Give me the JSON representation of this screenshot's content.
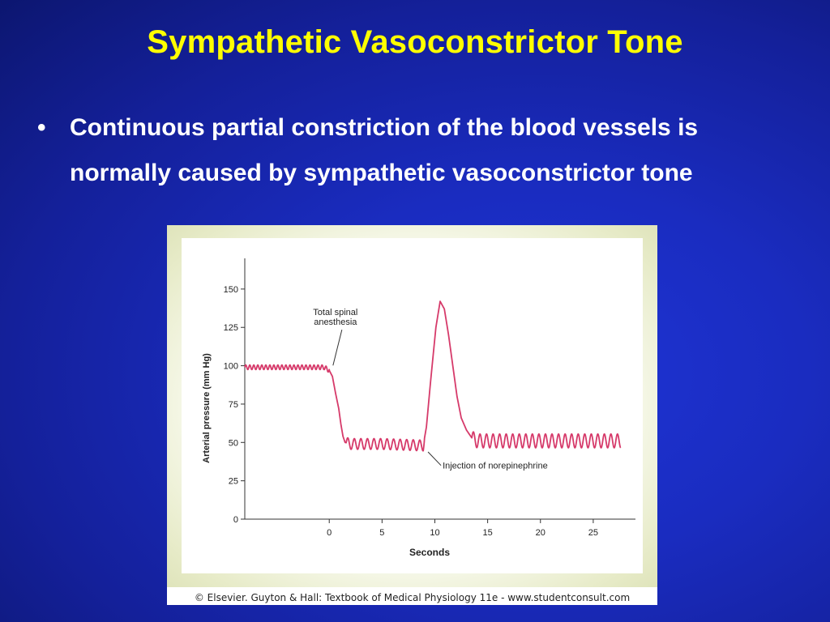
{
  "slide": {
    "title": "Sympathetic Vasoconstrictor Tone",
    "bullet_symbol": "•",
    "bullet_text": "Continuous partial constriction of the blood vessels is normally caused by sympathetic vasoconstrictor tone"
  },
  "figure": {
    "credit": "© Elsevier. Guyton & Hall: Textbook of Medical Physiology 11e - www.studentconsult.com"
  },
  "colors": {
    "title": "#ffff00",
    "bullet": "#ffffff",
    "trace": "#d63a6a",
    "axis": "#333333"
  },
  "chart_data": {
    "type": "line",
    "xlabel": "Seconds",
    "ylabel": "Arterial pressure (mm Hg)",
    "xlim": [
      -8,
      29
    ],
    "ylim": [
      0,
      170
    ],
    "xticks": [
      0,
      5,
      10,
      15,
      20,
      25
    ],
    "yticks": [
      0,
      25,
      50,
      75,
      100,
      125,
      150
    ],
    "grid": false,
    "annotations": [
      {
        "text": "Total spinal\nanesthesia",
        "at_x": 0.2,
        "at_y": 97
      },
      {
        "text": "Injection of norepinephrine",
        "at_x": 9.2,
        "at_y": 47
      }
    ],
    "series": [
      {
        "points": [
          [
            -8,
            99
          ],
          [
            -0.5,
            99
          ],
          [
            0,
            97
          ],
          [
            0.3,
            93
          ],
          [
            0.6,
            82
          ],
          [
            0.9,
            72
          ],
          [
            1.1,
            62
          ],
          [
            1.3,
            54
          ],
          [
            1.5,
            50
          ],
          [
            2,
            49
          ],
          [
            5,
            49
          ],
          [
            8.9,
            48
          ],
          [
            9.2,
            60
          ],
          [
            9.6,
            90
          ],
          [
            10.1,
            125
          ],
          [
            10.5,
            142
          ],
          [
            10.9,
            137
          ],
          [
            11.3,
            120
          ],
          [
            11.7,
            100
          ],
          [
            12.1,
            80
          ],
          [
            12.5,
            66
          ],
          [
            13,
            58
          ],
          [
            13.5,
            53
          ],
          [
            14,
            51
          ],
          [
            16,
            51
          ],
          [
            20,
            51
          ],
          [
            25,
            51
          ],
          [
            27.6,
            51
          ]
        ],
        "oscillation": [
          {
            "from_x": -8,
            "to_x": 0,
            "amplitude": 1.5,
            "period": 0.38
          },
          {
            "from_x": 1.6,
            "to_x": 9,
            "amplitude": 3.5,
            "period": 0.62
          },
          {
            "from_x": 13.5,
            "to_x": 27.6,
            "amplitude": 4.5,
            "period": 0.62
          }
        ]
      }
    ]
  }
}
